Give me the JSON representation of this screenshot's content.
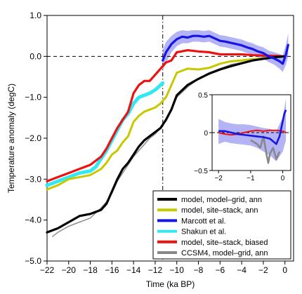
{
  "chart_data": {
    "type": "line",
    "xlabel": "Time (ka BP)",
    "ylabel": "Temperature anomaly (degC)",
    "xlim": [
      -22,
      0.8
    ],
    "ylim": [
      -5.0,
      1.0
    ],
    "x_ticks": [
      -22,
      -20,
      -18,
      -16,
      -14,
      -12,
      -10,
      -8,
      -6,
      -4,
      -2,
      0
    ],
    "y_ticks": [
      -5.0,
      -4.0,
      -3.0,
      -2.0,
      -1.0,
      0.0,
      1.0
    ],
    "x_tick_labels": [
      "−22",
      "−20",
      "−18",
      "−16",
      "−14",
      "−12",
      "−10",
      "−8",
      "−6",
      "−4",
      "−2",
      "0"
    ],
    "y_tick_labels": [
      "−5.0",
      "−4.0",
      "−3.0",
      "−2.0",
      "−1.0",
      "0.0",
      "1.0"
    ],
    "reference_lines": {
      "zero_dashed_y": 0,
      "vertical_dashdot_x": -11.3
    },
    "legend_placement": "bottom-right",
    "legend": [
      {
        "label": "model, model–grid, ann",
        "color": "#000000"
      },
      {
        "label": "model, site–stack, ann",
        "color": "#c8c800"
      },
      {
        "label": "Marcott et al.",
        "color": "#1515e6"
      },
      {
        "label": "Shakun et al.",
        "color": "#33e8f0"
      },
      {
        "label": "model, site–stack, biased",
        "color": "#ee1111"
      },
      {
        "label": "CCSM4, model–grid, ann",
        "color": "#888888"
      }
    ],
    "series": [
      {
        "name": "model, model–grid, ann",
        "color": "#000000",
        "x": [
          -22,
          -21,
          -20,
          -19,
          -18,
          -17,
          -16.5,
          -16,
          -15.5,
          -15,
          -14.5,
          -14,
          -13.5,
          -13,
          -12.5,
          -12,
          -11.5,
          -11,
          -10.5,
          -10,
          -9,
          -8,
          -7,
          -6,
          -5,
          -4,
          -3,
          -2,
          -1,
          0
        ],
        "y": [
          -4.3,
          -4.2,
          -4.05,
          -3.9,
          -3.85,
          -3.75,
          -3.6,
          -3.3,
          -3.0,
          -2.75,
          -2.6,
          -2.4,
          -2.2,
          -2.05,
          -1.95,
          -1.85,
          -1.75,
          -1.55,
          -1.3,
          -0.95,
          -0.7,
          -0.55,
          -0.42,
          -0.32,
          -0.24,
          -0.17,
          -0.1,
          -0.06,
          -0.02,
          0.0
        ]
      },
      {
        "name": "model, site–stack, ann",
        "color": "#c8c800",
        "x": [
          -22,
          -21,
          -20,
          -19,
          -18,
          -17,
          -16.5,
          -16,
          -15.5,
          -15,
          -14.5,
          -14,
          -13.5,
          -13,
          -12.5,
          -12,
          -11.5,
          -11,
          -10.5,
          -10,
          -9,
          -8,
          -7,
          -6,
          -5,
          -4,
          -3,
          -2,
          -1,
          0
        ],
        "y": [
          -3.25,
          -3.15,
          -3.0,
          -2.95,
          -2.9,
          -2.75,
          -2.6,
          -2.4,
          -2.3,
          -2.1,
          -1.95,
          -1.6,
          -1.45,
          -1.35,
          -1.3,
          -1.25,
          -1.15,
          -1.0,
          -0.7,
          -0.4,
          -0.3,
          -0.32,
          -0.28,
          -0.18,
          -0.12,
          -0.1,
          -0.07,
          -0.05,
          -0.02,
          0.0
        ]
      },
      {
        "name": "Marcott et al.",
        "color": "#1515e6",
        "x": [
          -11.3,
          -11,
          -10.5,
          -10,
          -9.5,
          -9,
          -8.5,
          -8,
          -7.5,
          -7,
          -6.5,
          -6,
          -5.5,
          -5,
          -4.5,
          -4,
          -3.5,
          -3,
          -2.5,
          -2,
          -1.5,
          -1,
          -0.5,
          -0.2,
          0.1,
          0.3
        ],
        "y": [
          -0.1,
          0.1,
          0.3,
          0.42,
          0.48,
          0.46,
          0.5,
          0.5,
          0.48,
          0.5,
          0.44,
          0.38,
          0.36,
          0.33,
          0.3,
          0.27,
          0.22,
          0.18,
          0.12,
          0.08,
          0.0,
          -0.05,
          -0.12,
          -0.18,
          0.05,
          0.28
        ]
      },
      {
        "name": "Shakun et al.",
        "color": "#33e8f0",
        "x": [
          -22,
          -21,
          -20,
          -19,
          -18,
          -17.5,
          -17,
          -16.5,
          -16,
          -15.5,
          -15,
          -14.5,
          -14,
          -13.5,
          -13,
          -12.5,
          -12,
          -11.5,
          -11.3
        ],
        "y": [
          -3.15,
          -3.05,
          -2.95,
          -2.85,
          -2.8,
          -2.7,
          -2.5,
          -2.3,
          -2.05,
          -1.8,
          -1.55,
          -1.4,
          -1.15,
          -1.0,
          -0.95,
          -0.9,
          -0.82,
          -0.7,
          -0.65
        ]
      },
      {
        "name": "model, site–stack, biased",
        "color": "#ee1111",
        "x": [
          -22,
          -21,
          -20,
          -19,
          -18,
          -17.5,
          -17,
          -16.5,
          -16,
          -15.5,
          -15,
          -14.5,
          -14,
          -13.5,
          -13,
          -12.5,
          -12,
          -11.5,
          -11,
          -10.5,
          -10,
          -9,
          -8,
          -7,
          -6,
          -5,
          -4,
          -3,
          -2,
          -1,
          0
        ],
        "y": [
          -3.05,
          -2.95,
          -2.85,
          -2.75,
          -2.65,
          -2.55,
          -2.45,
          -2.25,
          -2.0,
          -1.75,
          -1.55,
          -1.35,
          -0.9,
          -0.7,
          -0.6,
          -0.6,
          -0.45,
          -0.3,
          -0.15,
          -0.1,
          0.1,
          0.15,
          0.12,
          0.1,
          0.05,
          0.05,
          0.05,
          0.03,
          0.02,
          0.01,
          0.0
        ]
      },
      {
        "name": "CCSM4, model–grid, ann",
        "color": "#888888",
        "x": [
          -21.5,
          -21,
          -20,
          -19,
          -18,
          -17,
          -16.5,
          -16,
          -15.5,
          -15,
          -14.5,
          -14,
          -13.5,
          -13,
          -12.5,
          -12,
          -11.5,
          -11,
          -10.5,
          -10,
          -9,
          -8,
          -7,
          -6,
          -5,
          -4,
          -3,
          -2,
          -1,
          0
        ],
        "y": [
          -4.4,
          -4.3,
          -4.15,
          -4.05,
          -3.95,
          -3.7,
          -3.55,
          -3.35,
          -3.05,
          -2.85,
          -2.65,
          -2.45,
          -2.3,
          -2.15,
          -2.0,
          -1.9,
          -1.75,
          -1.55,
          -1.3,
          -1.0,
          -0.75,
          -0.55,
          -0.4,
          -0.3,
          -0.2,
          -0.15,
          -0.1,
          -0.05,
          -0.02,
          0.0
        ]
      }
    ],
    "marcott_band": {
      "x": [
        -11.3,
        -11,
        -10.5,
        -10,
        -9.5,
        -9,
        -8.5,
        -8,
        -7.5,
        -7,
        -6.5,
        -6,
        -5.5,
        -5,
        -4.5,
        -4,
        -3.5,
        -3,
        -2.5,
        -2,
        -1.5,
        -1,
        -0.5,
        -0.2,
        0.1,
        0.3
      ],
      "lower": [
        -0.35,
        -0.15,
        0.1,
        0.25,
        0.32,
        0.32,
        0.36,
        0.36,
        0.34,
        0.36,
        0.3,
        0.24,
        0.22,
        0.19,
        0.16,
        0.13,
        0.08,
        0.04,
        -0.02,
        -0.06,
        -0.14,
        -0.2,
        -0.3,
        -0.38,
        -0.2,
        0.0
      ],
      "upper": [
        0.15,
        0.35,
        0.5,
        0.6,
        0.64,
        0.62,
        0.64,
        0.64,
        0.62,
        0.64,
        0.58,
        0.52,
        0.5,
        0.47,
        0.44,
        0.41,
        0.36,
        0.32,
        0.26,
        0.22,
        0.14,
        0.1,
        0.06,
        0.02,
        0.3,
        0.56
      ]
    },
    "inset": {
      "xlim": [
        -2.2,
        0.25
      ],
      "ylim": [
        -0.5,
        0.5
      ],
      "x_ticks": [
        -2,
        -1,
        0
      ],
      "y_ticks": [
        -0.5,
        0,
        0.5
      ],
      "x_tick_labels": [
        "−2",
        "−1",
        "0"
      ],
      "y_tick_labels": [
        "−0.5",
        "0",
        "0.5"
      ],
      "band": {
        "x": [
          -2.0,
          -1.8,
          -1.6,
          -1.4,
          -1.2,
          -1.0,
          -0.8,
          -0.6,
          -0.4,
          -0.2,
          0.0,
          0.1
        ],
        "lower": [
          -0.15,
          -0.12,
          -0.14,
          -0.15,
          -0.16,
          -0.17,
          -0.2,
          -0.25,
          -0.3,
          -0.38,
          -0.25,
          -0.1
        ],
        "upper": [
          0.18,
          0.14,
          0.12,
          0.11,
          0.11,
          0.1,
          0.08,
          0.06,
          0.05,
          0.02,
          0.2,
          0.45
        ]
      },
      "series": [
        {
          "name": "Marcott et al.",
          "color": "#1515e6",
          "x": [
            -2.0,
            -1.8,
            -1.6,
            -1.4,
            -1.2,
            -1.0,
            -0.8,
            -0.6,
            -0.4,
            -0.2,
            -0.1,
            0.0,
            0.05,
            0.1
          ],
          "y": [
            0.02,
            0.02,
            0.0,
            -0.02,
            -0.03,
            -0.04,
            -0.05,
            -0.06,
            -0.08,
            -0.15,
            -0.05,
            0.15,
            0.25,
            0.3
          ]
        },
        {
          "name": "model, site–stack, biased",
          "color": "#ee1111",
          "x": [
            -2.0,
            -1.8,
            -1.6,
            -1.4,
            -1.2,
            -1.0,
            -0.8,
            -0.6,
            -0.4,
            -0.2,
            0.0,
            0.1
          ],
          "y": [
            0.0,
            -0.02,
            -0.03,
            -0.02,
            0.0,
            0.02,
            0.03,
            0.02,
            0.03,
            0.03,
            0.02,
            0.0
          ]
        },
        {
          "name": "CCSM4, model–grid, ann",
          "color": "#888888",
          "x": [
            -1.0,
            -0.8,
            -0.7,
            -0.6,
            -0.5,
            -0.45,
            -0.4,
            -0.3,
            -0.2,
            -0.1
          ],
          "y": [
            -0.1,
            -0.15,
            -0.2,
            -0.05,
            -0.3,
            -0.4,
            -0.28,
            -0.2,
            -0.35,
            -0.25
          ]
        }
      ]
    }
  }
}
